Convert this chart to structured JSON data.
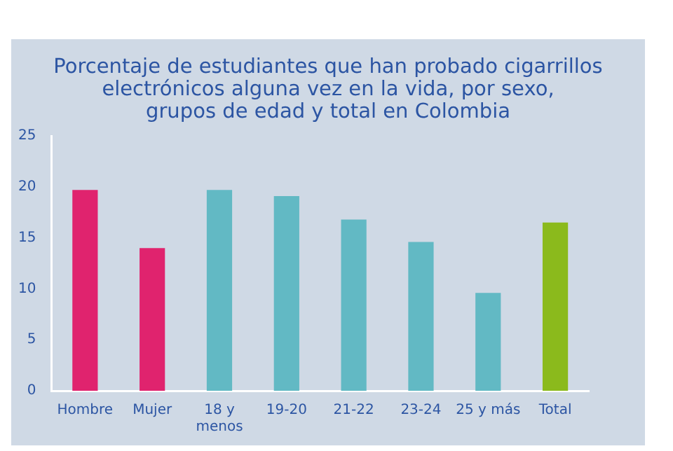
{
  "chart_data": {
    "type": "bar",
    "title": "Porcentaje de estudiantes que han probado cigarrillos\nelectrónicos alguna vez en la vida, por sexo,\ngrupos de edad y total en Colombia",
    "categories": [
      "Hombre",
      "Mujer",
      "18 y\nmenos",
      "19-20",
      "21-22",
      "23-24",
      "25 y más",
      "Total"
    ],
    "values": [
      19.7,
      14.0,
      19.7,
      19.1,
      16.8,
      14.6,
      9.6,
      16.5
    ],
    "colors": [
      "#e0236e",
      "#e0236e",
      "#62b9c4",
      "#62b9c4",
      "#62b9c4",
      "#62b9c4",
      "#62b9c4",
      "#8bba1c"
    ],
    "ylim": [
      0,
      25
    ],
    "yticks": [
      0,
      5,
      10,
      15,
      20,
      25
    ],
    "grid": false,
    "legend": false
  }
}
